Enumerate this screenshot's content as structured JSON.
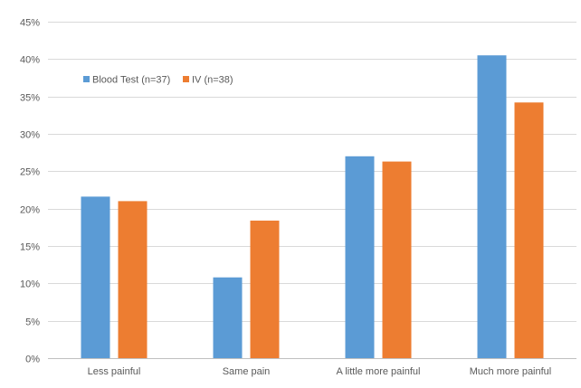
{
  "chart_data": {
    "type": "bar",
    "title": "",
    "xlabel": "",
    "ylabel": "",
    "categories": [
      "Less painful",
      "Same pain",
      "A little more painful",
      "Much more painful"
    ],
    "series": [
      {
        "name": "Blood Test (n=37)",
        "color": "#5B9BD5",
        "values": [
          21.6,
          10.8,
          27.0,
          40.5
        ]
      },
      {
        "name": "IV (n=38)",
        "color": "#ED7D31",
        "values": [
          21.0,
          18.4,
          26.3,
          34.2
        ]
      }
    ],
    "ylim": [
      0,
      45
    ],
    "yticks": [
      0,
      5,
      10,
      15,
      20,
      25,
      30,
      35,
      40,
      45
    ],
    "ytick_labels": [
      "0%",
      "5%",
      "10%",
      "15%",
      "20%",
      "25%",
      "30%",
      "35%",
      "40%",
      "45%"
    ],
    "grid": true,
    "legend_position": "top-left"
  }
}
